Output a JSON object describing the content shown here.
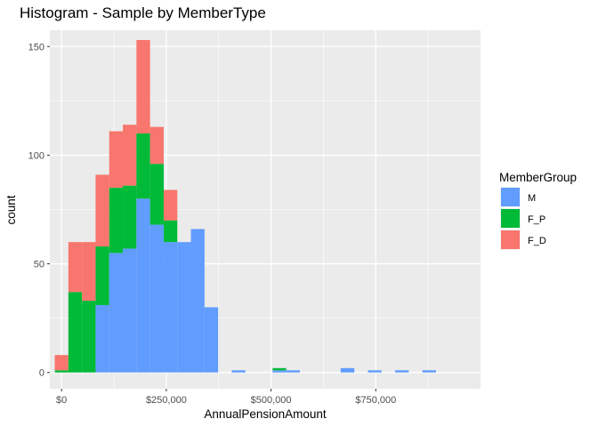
{
  "chart_data": {
    "type": "bar",
    "stacked": true,
    "title": "Histogram - Sample by MemberType",
    "xlabel": "AnnualPensionAmount",
    "ylabel": "count",
    "xlim": [
      -28000,
      1000000
    ],
    "ylim": [
      -7.5,
      157.5
    ],
    "bin_width": 32500,
    "bin_start": -16250,
    "grid": true,
    "x_ticks": [
      {
        "value": 0,
        "label": "$0"
      },
      {
        "value": 250000,
        "label": "$250,000"
      },
      {
        "value": 500000,
        "label": "$500,000"
      },
      {
        "value": 750000,
        "label": "$750,000"
      }
    ],
    "y_ticks": [
      {
        "value": 0,
        "label": "0"
      },
      {
        "value": 50,
        "label": "50"
      },
      {
        "value": 100,
        "label": "100"
      },
      {
        "value": 150,
        "label": "150"
      }
    ],
    "legend": {
      "title": "MemberGroup",
      "placement": "right"
    },
    "series": [
      {
        "name": "M",
        "color": "#619CFF",
        "values": [
          0,
          0,
          0,
          31,
          55,
          57,
          80,
          68,
          60,
          60,
          66,
          30,
          0,
          1,
          0,
          0,
          1,
          1,
          0,
          0,
          0,
          2,
          0,
          1,
          0,
          1,
          0,
          1
        ]
      },
      {
        "name": "F_P",
        "color": "#00BA38",
        "values": [
          1,
          37,
          33,
          27,
          30,
          29,
          30,
          28,
          10,
          0,
          0,
          0,
          0,
          0,
          0,
          0,
          1,
          0,
          0,
          0,
          0,
          0,
          0,
          0,
          0,
          0,
          0,
          0
        ]
      },
      {
        "name": "F_D",
        "color": "#F8766D",
        "values": [
          7,
          23,
          27,
          33,
          26,
          28,
          43,
          17,
          14,
          0,
          0,
          0,
          0,
          0,
          0,
          0,
          0,
          0,
          0,
          0,
          0,
          0,
          0,
          0,
          0,
          0,
          0,
          0
        ]
      }
    ]
  }
}
